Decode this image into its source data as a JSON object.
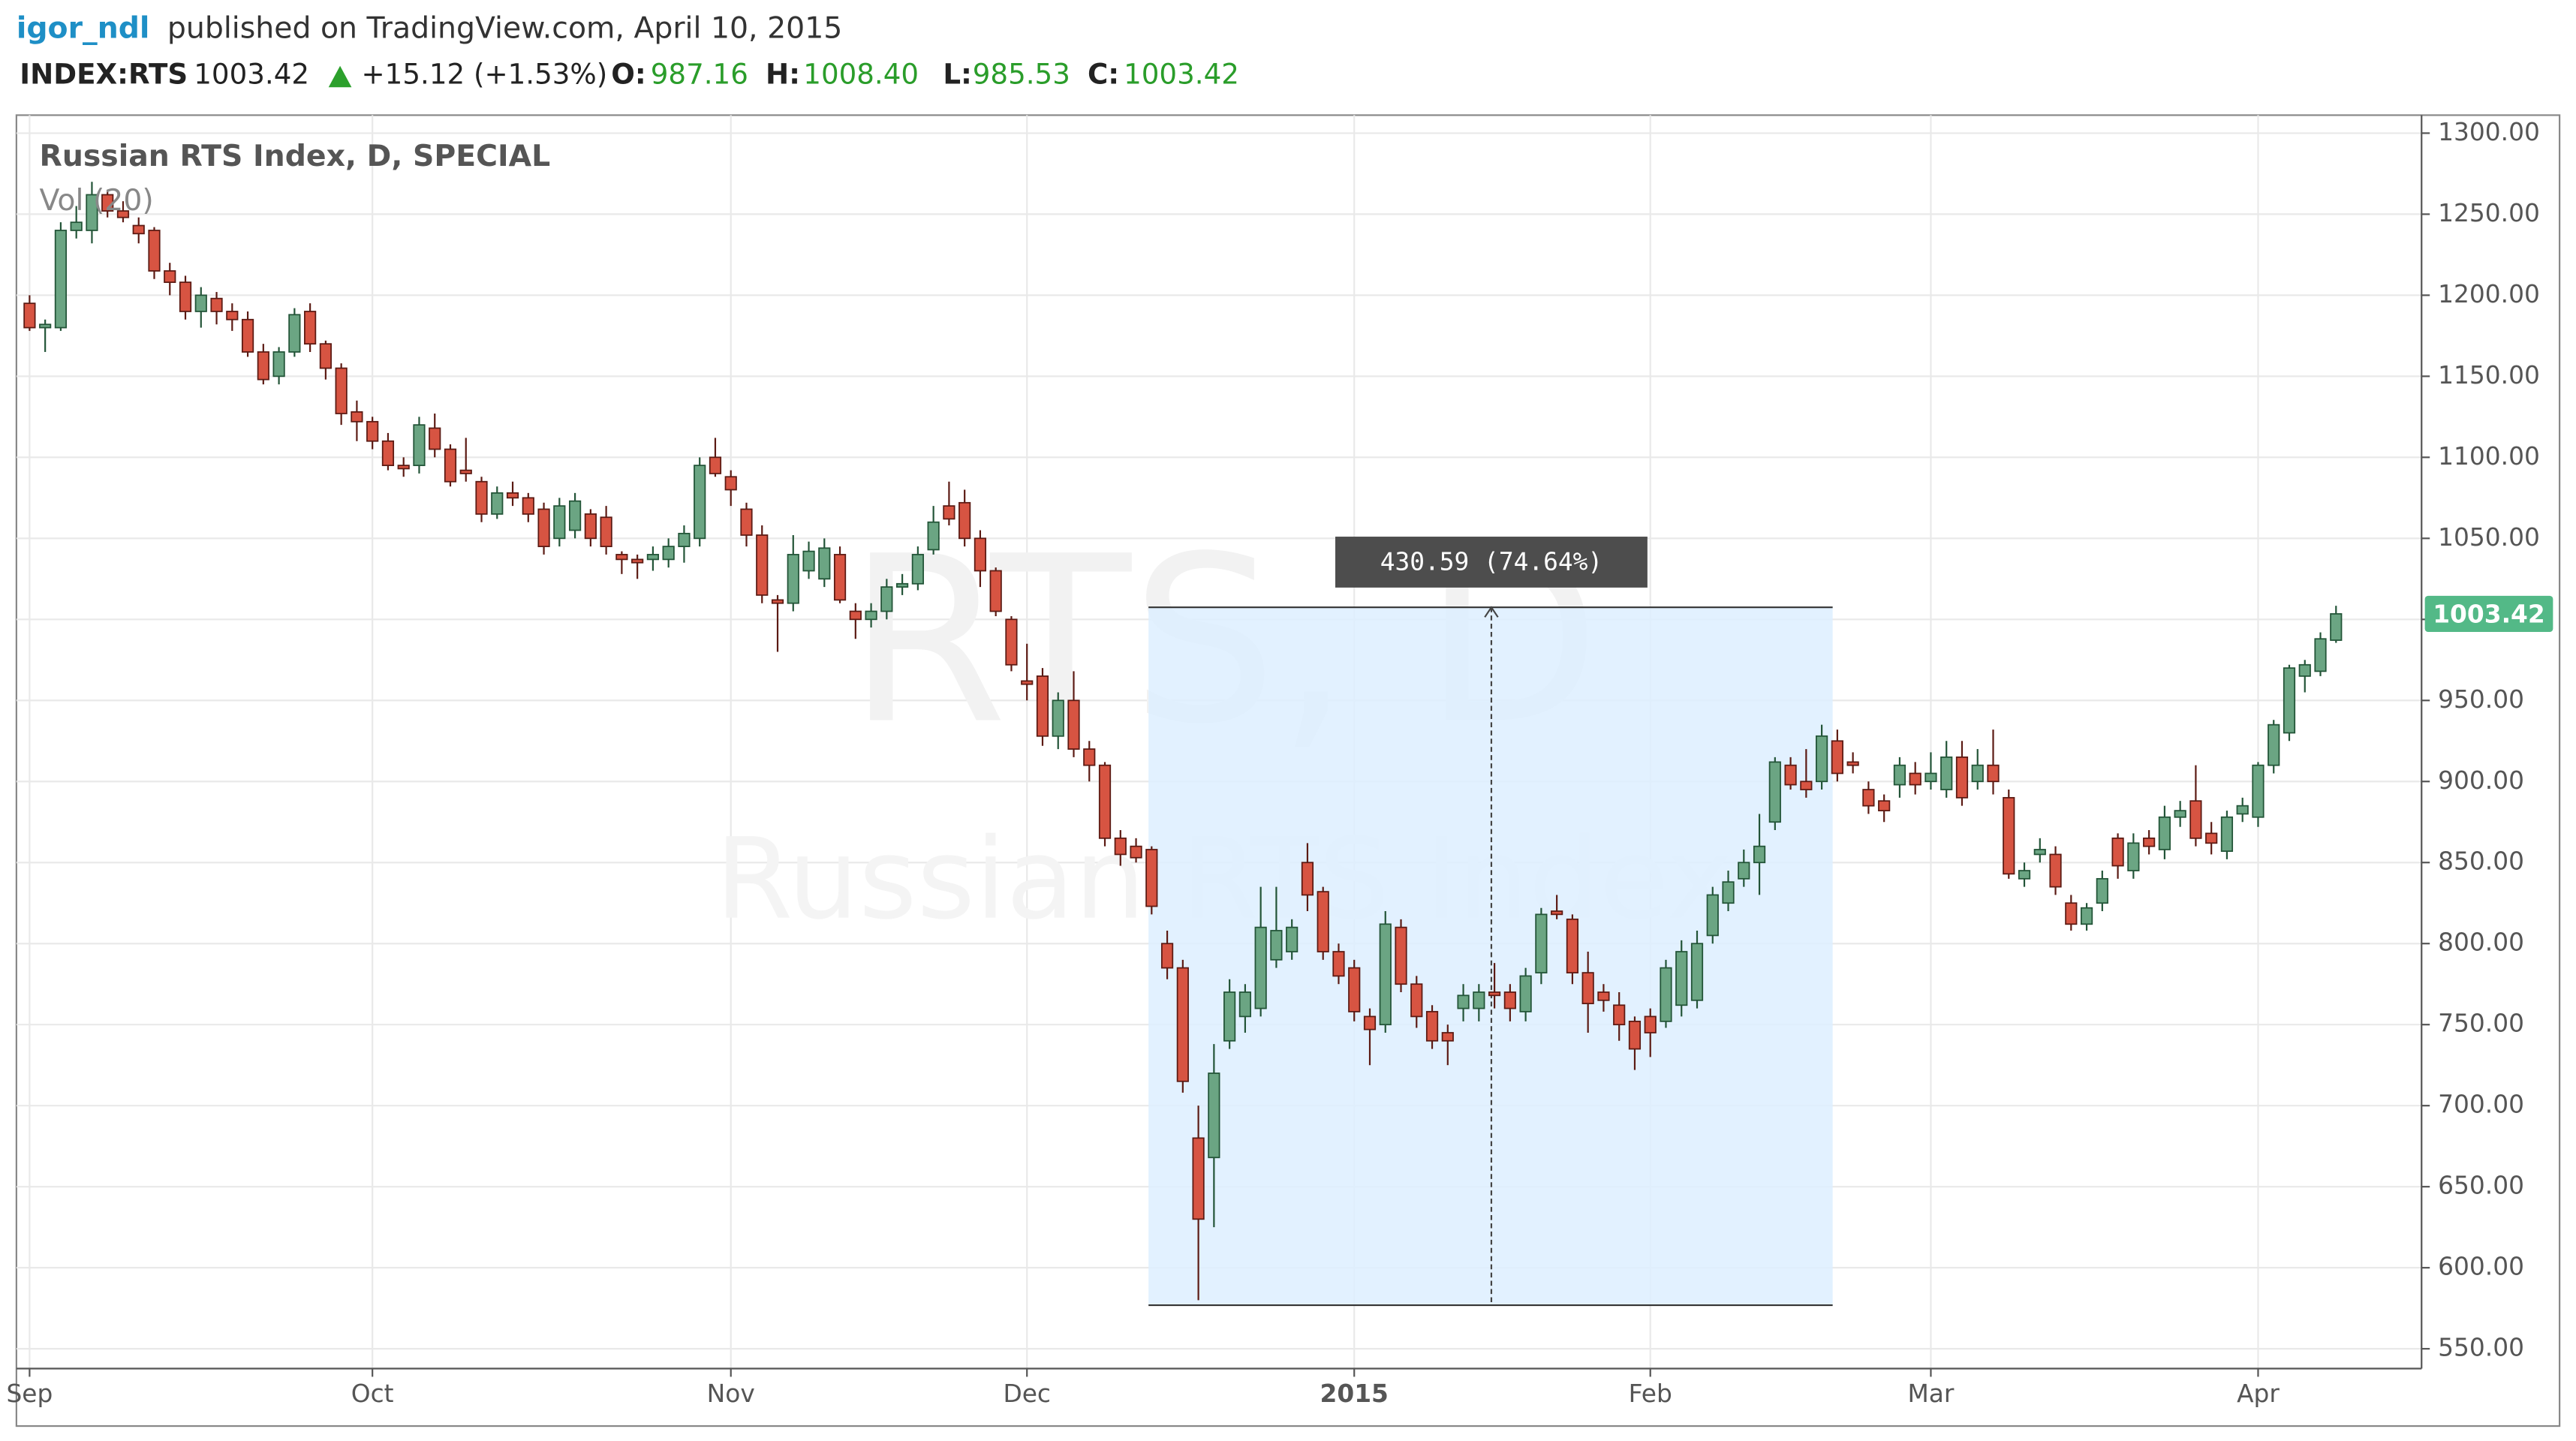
{
  "header": {
    "author": "igor_ndl",
    "published": "published on TradingView.com, April 10, 2015",
    "symbol": "INDEX:RTS",
    "last": "1003.42",
    "change": "+15.12 (+1.53%)",
    "o_label": "O:",
    "o_value": "987.16",
    "h_label": "H:",
    "h_value": "1008.40",
    "l_label": "L:",
    "l_value": "985.53",
    "c_label": "C:",
    "c_value": "1003.42"
  },
  "chart_data": {
    "type": "candlestick",
    "title": "Russian RTS Index, D, SPECIAL",
    "indicator": "Vol (20)",
    "watermark": "RTS, D",
    "watermark_subtitle": "Russian RTS Index",
    "up_color": "#6ba583",
    "down_color": "#d75442",
    "grid": true,
    "categories": [
      "Sep",
      null,
      null,
      null,
      null,
      null,
      null,
      null,
      null,
      null,
      null,
      null,
      null,
      null,
      null,
      null,
      null,
      null,
      null,
      null,
      null,
      null,
      "Oct",
      null,
      null,
      null,
      null,
      null,
      null,
      null,
      null,
      null,
      null,
      null,
      null,
      null,
      null,
      null,
      null,
      null,
      null,
      null,
      null,
      null,
      null,
      "Nov",
      null,
      null,
      null,
      null,
      null,
      null,
      null,
      null,
      null,
      null,
      null,
      null,
      null,
      null,
      null,
      null,
      null,
      null,
      "Dec",
      null,
      null,
      null,
      null,
      null,
      null,
      null,
      null,
      null,
      null,
      null,
      null,
      null,
      null,
      null,
      null,
      null,
      null,
      null,
      null,
      "2015",
      null,
      null,
      null,
      null,
      null,
      null,
      null,
      null,
      null,
      null,
      null,
      null,
      null,
      null,
      null,
      null,
      null,
      null,
      "Feb",
      null,
      null,
      null,
      null,
      null,
      null,
      null,
      null,
      null,
      null,
      null,
      null,
      null,
      null,
      null,
      null,
      null,
      "Mar",
      null,
      null,
      null,
      null,
      null,
      null,
      null,
      null,
      null,
      null,
      null,
      null,
      null,
      null,
      null,
      null,
      null,
      null,
      null,
      null,
      "Apr",
      null,
      null,
      null,
      null,
      null
    ],
    "open": [
      1195,
      1180,
      1180,
      1240,
      1240,
      1262,
      1252,
      1243,
      1240,
      1215,
      1208,
      1190,
      1198,
      1190,
      1185,
      1165,
      1150,
      1165,
      1190,
      1170,
      1155,
      1128,
      1122,
      1110,
      1095,
      1095,
      1118,
      1105,
      1092,
      1085,
      1065,
      1078,
      1075,
      1068,
      1050,
      1055,
      1065,
      1063,
      1040,
      1037,
      1037,
      1037,
      1045,
      1050,
      1100,
      1088,
      1068,
      1052,
      1012,
      1010,
      1030,
      1025,
      1040,
      1005,
      1000,
      1005,
      1020,
      1022,
      1043,
      1070,
      1072,
      1050,
      1030,
      1000,
      962,
      965,
      928,
      950,
      920,
      910,
      865,
      860,
      858,
      800,
      785,
      680,
      668,
      740,
      755,
      760,
      790,
      795,
      850,
      832,
      795,
      785,
      755,
      750,
      810,
      775,
      758,
      745,
      760,
      760,
      770,
      770,
      758,
      782,
      820,
      815,
      782,
      770,
      762,
      752,
      755,
      752,
      762,
      765,
      805,
      825,
      840,
      850,
      875,
      910,
      900,
      900,
      925,
      912,
      895,
      888,
      898,
      905,
      900,
      895,
      915,
      900,
      910,
      890,
      840,
      855,
      855,
      825,
      812,
      825,
      865,
      845,
      865,
      858,
      878,
      888,
      868,
      857,
      880,
      878,
      910,
      930,
      965,
      968,
      987.16
    ],
    "high": [
      1200,
      1185,
      1245,
      1255,
      1270,
      1265,
      1258,
      1248,
      1242,
      1220,
      1212,
      1205,
      1202,
      1195,
      1190,
      1170,
      1168,
      1192,
      1195,
      1172,
      1158,
      1135,
      1125,
      1115,
      1100,
      1125,
      1127,
      1108,
      1112,
      1088,
      1082,
      1085,
      1078,
      1072,
      1075,
      1078,
      1068,
      1070,
      1042,
      1040,
      1045,
      1050,
      1058,
      1100,
      1112,
      1092,
      1072,
      1058,
      1015,
      1052,
      1048,
      1050,
      1045,
      1010,
      1010,
      1025,
      1028,
      1045,
      1070,
      1085,
      1080,
      1055,
      1032,
      1002,
      985,
      970,
      955,
      968,
      925,
      912,
      870,
      865,
      860,
      808,
      790,
      700,
      738,
      778,
      775,
      835,
      835,
      815,
      862,
      835,
      800,
      790,
      760,
      820,
      815,
      780,
      762,
      750,
      775,
      775,
      788,
      775,
      785,
      822,
      830,
      818,
      795,
      775,
      770,
      755,
      760,
      790,
      802,
      808,
      835,
      845,
      858,
      880,
      915,
      915,
      920,
      935,
      932,
      918,
      900,
      892,
      915,
      912,
      918,
      925,
      925,
      920,
      932,
      895,
      850,
      865,
      860,
      830,
      825,
      845,
      868,
      868,
      870,
      885,
      888,
      910,
      875,
      882,
      890,
      912,
      938,
      972,
      975,
      992,
      1008.4
    ],
    "low": [
      1178,
      1165,
      1178,
      1235,
      1232,
      1248,
      1245,
      1232,
      1210,
      1200,
      1185,
      1180,
      1182,
      1178,
      1162,
      1145,
      1145,
      1162,
      1165,
      1148,
      1120,
      1110,
      1105,
      1092,
      1088,
      1090,
      1100,
      1082,
      1085,
      1060,
      1062,
      1070,
      1060,
      1040,
      1045,
      1050,
      1045,
      1040,
      1028,
      1025,
      1030,
      1032,
      1035,
      1045,
      1088,
      1070,
      1045,
      1010,
      980,
      1005,
      1025,
      1020,
      1010,
      988,
      995,
      1000,
      1015,
      1018,
      1040,
      1058,
      1045,
      1020,
      1002,
      968,
      950,
      922,
      920,
      915,
      900,
      860,
      848,
      850,
      818,
      778,
      708,
      580,
      625,
      735,
      745,
      755,
      785,
      790,
      820,
      790,
      775,
      752,
      725,
      745,
      770,
      748,
      735,
      725,
      752,
      752,
      760,
      752,
      752,
      775,
      815,
      775,
      745,
      758,
      740,
      722,
      730,
      748,
      755,
      760,
      800,
      820,
      835,
      830,
      870,
      895,
      890,
      895,
      900,
      905,
      880,
      875,
      890,
      892,
      895,
      890,
      885,
      895,
      892,
      840,
      835,
      850,
      830,
      808,
      808,
      820,
      840,
      840,
      855,
      852,
      872,
      860,
      855,
      852,
      875,
      872,
      905,
      925,
      955,
      965,
      985.53
    ],
    "close": [
      1180,
      1182,
      1240,
      1245,
      1262,
      1252,
      1248,
      1238,
      1215,
      1208,
      1190,
      1200,
      1190,
      1185,
      1165,
      1148,
      1165,
      1188,
      1170,
      1155,
      1127,
      1122,
      1110,
      1095,
      1093,
      1120,
      1105,
      1085,
      1090,
      1065,
      1078,
      1075,
      1065,
      1045,
      1070,
      1073,
      1050,
      1045,
      1037,
      1035,
      1040,
      1045,
      1053,
      1095,
      1090,
      1080,
      1052,
      1015,
      1010,
      1040,
      1042,
      1044,
      1012,
      1000,
      1005,
      1020,
      1022,
      1040,
      1060,
      1062,
      1050,
      1030,
      1005,
      972,
      960,
      928,
      950,
      920,
      910,
      865,
      855,
      853,
      823,
      785,
      715,
      630,
      720,
      770,
      770,
      810,
      808,
      810,
      830,
      795,
      780,
      758,
      747,
      812,
      775,
      755,
      740,
      740,
      768,
      770,
      768,
      760,
      780,
      818,
      818,
      782,
      763,
      765,
      750,
      735,
      745,
      785,
      795,
      800,
      830,
      838,
      850,
      860,
      912,
      898,
      895,
      928,
      905,
      910,
      885,
      882,
      910,
      898,
      905,
      915,
      890,
      910,
      900,
      843,
      845,
      858,
      835,
      812,
      822,
      840,
      848,
      862,
      860,
      878,
      882,
      865,
      862,
      878,
      885,
      910,
      935,
      970,
      972,
      988,
      1003.42
    ],
    "last_price_color": "#53b987",
    "measure": {
      "label": "430.59 (74.64%)",
      "low": 576.88,
      "high": 1007.47,
      "color": "#ddeeff"
    },
    "ylim": [
      537.8,
      1311.1
    ],
    "yticks": [
      {
        "value": 550,
        "label": "550.00"
      },
      {
        "value": 600,
        "label": "600.00"
      },
      {
        "value": 650,
        "label": "650.00"
      },
      {
        "value": 700,
        "label": "700.00"
      },
      {
        "value": 750,
        "label": "750.00"
      },
      {
        "value": 800,
        "label": "800.00"
      },
      {
        "value": 850,
        "label": "850.00"
      },
      {
        "value": 900,
        "label": "900.00"
      },
      {
        "value": 950,
        "label": "950.00"
      },
      {
        "value": 1000,
        "label": "1000.00"
      },
      {
        "value": 1050,
        "label": "1050.00"
      },
      {
        "value": 1100,
        "label": "1100.00"
      },
      {
        "value": 1150,
        "label": "1150.00"
      },
      {
        "value": 1200,
        "label": "1200.00"
      },
      {
        "value": 1250,
        "label": "1250.00"
      },
      {
        "value": 1300,
        "label": "1300.00"
      }
    ]
  }
}
